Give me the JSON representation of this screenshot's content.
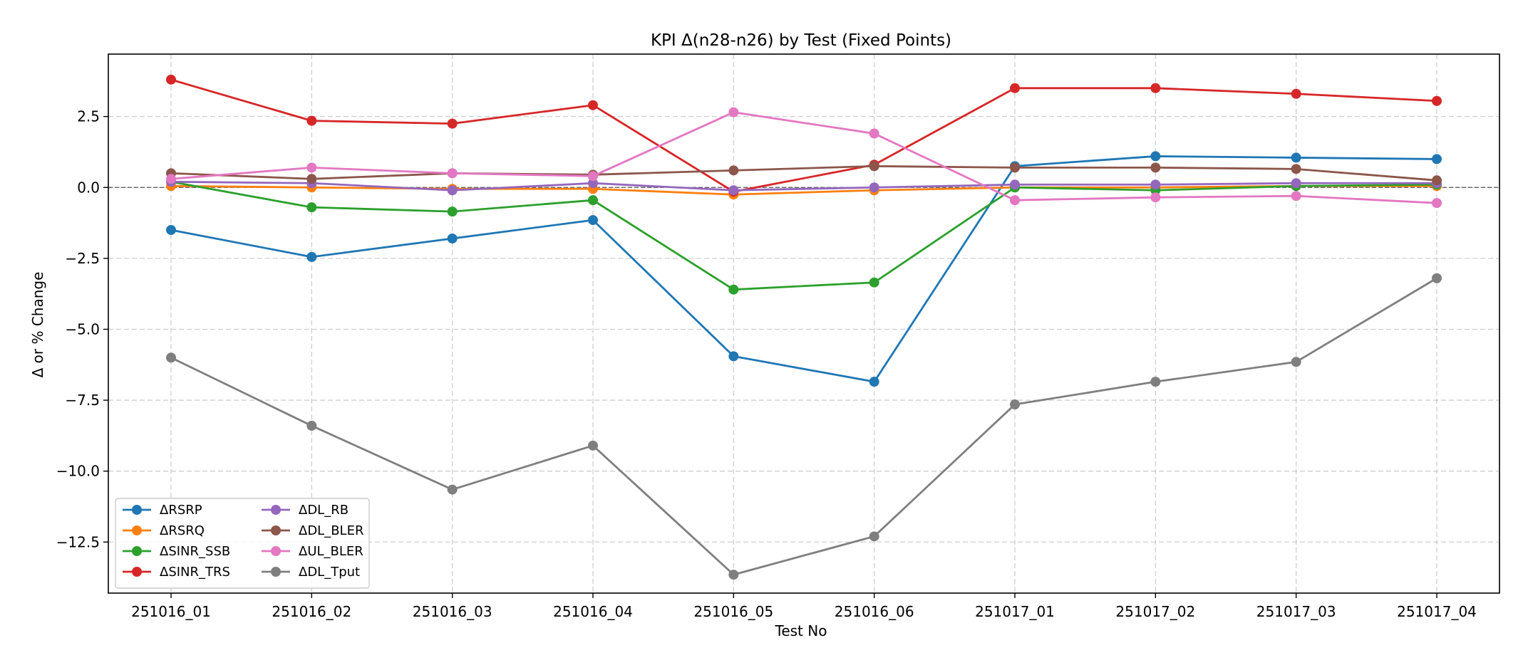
{
  "chart_data": {
    "type": "line",
    "title": "KPI Δ(n28-n26) by Test (Fixed Points)",
    "xlabel": "Test No",
    "ylabel": "Δ or % Change",
    "categories": [
      "251016_01",
      "251016_02",
      "251016_03",
      "251016_04",
      "251016_05",
      "251016_06",
      "251017_01",
      "251017_02",
      "251017_03",
      "251017_04"
    ],
    "ylim": [
      -14.3,
      4.7
    ],
    "yticks": [
      2.5,
      0.0,
      -2.5,
      -5.0,
      -7.5,
      -10.0,
      -12.5
    ],
    "ytick_labels": [
      "2.5",
      "0.0",
      "−2.5",
      "−5.0",
      "−7.5",
      "−10.0",
      "−12.5"
    ],
    "zero_line": true,
    "grid": true,
    "legend_position": "lower-left",
    "series": [
      {
        "name": "ΔRSRP",
        "color": "#1f77b4",
        "values": [
          -1.5,
          -2.45,
          -1.8,
          -1.15,
          -5.95,
          -6.85,
          0.75,
          1.1,
          1.05,
          1.0
        ]
      },
      {
        "name": "ΔRSRQ",
        "color": "#ff7f0e",
        "values": [
          0.05,
          0.0,
          -0.05,
          -0.05,
          -0.25,
          -0.1,
          0.0,
          0.0,
          0.05,
          0.05
        ]
      },
      {
        "name": "ΔSINR_SSB",
        "color": "#2ca02c",
        "values": [
          0.2,
          -0.7,
          -0.85,
          -0.45,
          -3.6,
          -3.35,
          0.0,
          -0.1,
          0.05,
          0.1
        ]
      },
      {
        "name": "ΔSINR_TRS",
        "color": "#d62728",
        "values": [
          3.8,
          2.35,
          2.25,
          2.9,
          -0.15,
          0.8,
          3.5,
          3.5,
          3.3,
          3.05
        ]
      },
      {
        "name": "ΔDL_RB",
        "color": "#9467bd",
        "values": [
          0.2,
          0.15,
          -0.1,
          0.15,
          -0.1,
          0.0,
          0.1,
          0.1,
          0.15,
          0.15
        ]
      },
      {
        "name": "ΔDL_BLER",
        "color": "#8c564b",
        "values": [
          0.5,
          0.3,
          0.5,
          0.45,
          0.6,
          0.75,
          0.7,
          0.7,
          0.65,
          0.25
        ]
      },
      {
        "name": "ΔUL_BLER",
        "color": "#e377c2",
        "values": [
          0.3,
          0.7,
          0.5,
          0.4,
          2.65,
          1.9,
          -0.45,
          -0.35,
          -0.3,
          -0.55
        ]
      },
      {
        "name": "ΔDL_Tput",
        "color": "#7f7f7f",
        "values": [
          -6.0,
          -8.4,
          -10.65,
          -9.1,
          -13.65,
          -12.3,
          -7.65,
          -6.85,
          -6.15,
          -3.2
        ]
      }
    ]
  }
}
